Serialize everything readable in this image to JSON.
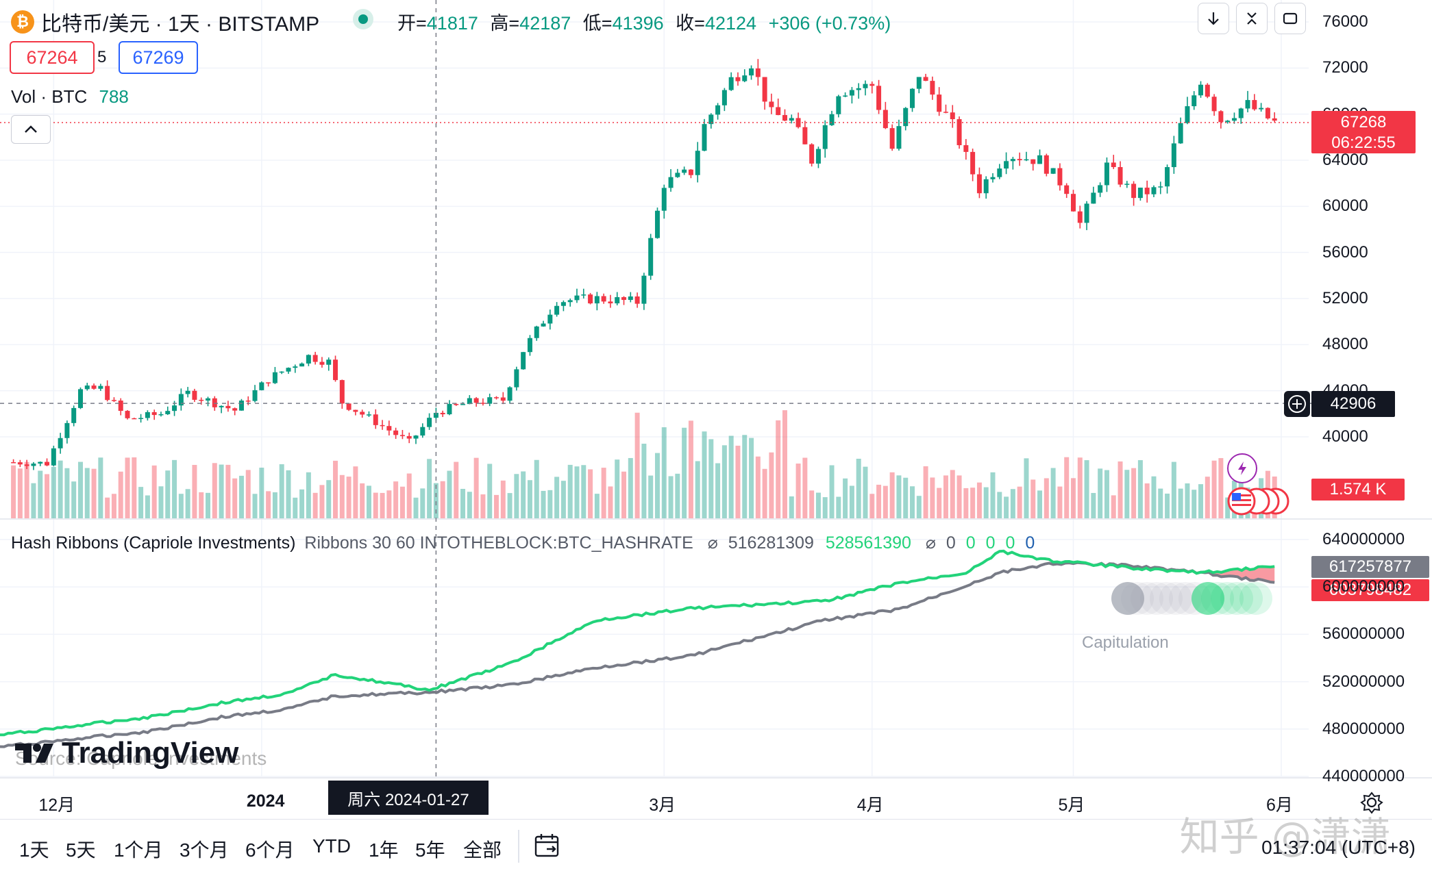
{
  "header": {
    "symbol_title": "比特币/美元 · 1天 · BITSTAMP",
    "btc_badge": "₿",
    "open_label": "开=",
    "open": "41817",
    "high_label": "高=",
    "high": "42187",
    "low_label": "低=",
    "low": "41396",
    "close_label": "收=",
    "close": "42124",
    "change": "+306 (+0.73%)"
  },
  "trade": {
    "sell": "67264",
    "spread": "5",
    "buy": "67269"
  },
  "volume_legend": {
    "label": "Vol · BTC",
    "value": "788"
  },
  "toolbar": {
    "collapse_icon": "chevron-up-icon",
    "down_icon": "arrow-down-icon",
    "close_icon": "close-icon",
    "fullscreen_icon": "fullscreen-icon"
  },
  "price_axis": {
    "ticks": [
      "76000",
      "72000",
      "68000",
      "64000",
      "60000",
      "56000",
      "52000",
      "48000",
      "44000",
      "40000"
    ]
  },
  "tags": {
    "last_price": "67268",
    "countdown": "06:22:55",
    "crosshair_price": "42906",
    "volume": "1.574 K",
    "hash_fast": "617257877",
    "hash_slow": "603798482"
  },
  "indicator": {
    "name": "Hash Ribbons (Capriole Investments)",
    "params": "Ribbons 30 60 INTOTHEBLOCK:BTC_HASHRATE",
    "symbol": "⌀",
    "v1": "516281309",
    "v2": "528561390",
    "symbol2": "⌀",
    "z1": "0",
    "z2": "0",
    "z3": "0",
    "z4": "0",
    "z5": "0",
    "capitulation_label": "Capitulation",
    "source_label": "Source: Capriole Investments",
    "axis_ticks": [
      "640000000",
      "600000000",
      "560000000",
      "520000000",
      "480000000",
      "440000000"
    ]
  },
  "time_axis": {
    "labels": [
      "12月",
      "2024",
      "3月",
      "4月",
      "5月",
      "6月"
    ],
    "crosshair_date": "周六 2024-01-27"
  },
  "range_buttons": [
    "1天",
    "5天",
    "1个月",
    "3个月",
    "6个月",
    "YTD",
    "1年",
    "5年",
    "全部"
  ],
  "bottom": {
    "clock": "01:37:04 (UTC+8)",
    "watermark": "知乎 @潇潇",
    "tv_logo": "TradingView"
  },
  "colors": {
    "up": "#089981",
    "down": "#f23645",
    "ribbon_fast": "#22d37a",
    "ribbon_slow": "#787b86"
  },
  "chart_data": [
    {
      "type": "candlestick",
      "title": "比特币/美元 · 1天 · BITSTAMP",
      "x_range": [
        "2023-11-23",
        "2024-06-01"
      ],
      "ylim": [
        38000,
        76500
      ],
      "last_price": 67268,
      "crosshair": {
        "date": "2024-01-27",
        "price": 42906
      },
      "crosshair_bar": {
        "open": 41817,
        "high": 42187,
        "low": 41396,
        "close": 42124
      },
      "anchors": [
        [
          "2023-11-25",
          37800
        ],
        [
          "2023-11-30",
          37700
        ],
        [
          "2023-12-05",
          44000
        ],
        [
          "2023-12-08",
          44200
        ],
        [
          "2023-12-12",
          41500
        ],
        [
          "2023-12-17",
          42000
        ],
        [
          "2023-12-21",
          43800
        ],
        [
          "2023-12-28",
          42300
        ],
        [
          "2024-01-02",
          45000
        ],
        [
          "2024-01-08",
          47000
        ],
        [
          "2024-01-11",
          46500
        ],
        [
          "2024-01-13",
          43000
        ],
        [
          "2024-01-18",
          41300
        ],
        [
          "2024-01-23",
          39500
        ],
        [
          "2024-01-27",
          42124
        ],
        [
          "2024-02-01",
          43000
        ],
        [
          "2024-02-06",
          43200
        ],
        [
          "2024-02-09",
          47500
        ],
        [
          "2024-02-14",
          51800
        ],
        [
          "2024-02-20",
          52000
        ],
        [
          "2024-02-26",
          51700
        ],
        [
          "2024-02-28",
          57000
        ],
        [
          "2024-03-01",
          62000
        ],
        [
          "2024-03-05",
          63000
        ],
        [
          "2024-03-07",
          67000
        ],
        [
          "2024-03-11",
          71000
        ],
        [
          "2024-03-14",
          72500
        ],
        [
          "2024-03-17",
          68000
        ],
        [
          "2024-03-20",
          67500
        ],
        [
          "2024-03-23",
          64000
        ],
        [
          "2024-03-27",
          70000
        ],
        [
          "2024-04-01",
          70500
        ],
        [
          "2024-04-04",
          65000
        ],
        [
          "2024-04-08",
          71500
        ],
        [
          "2024-04-13",
          67000
        ],
        [
          "2024-04-17",
          61500
        ],
        [
          "2024-04-21",
          64500
        ],
        [
          "2024-04-26",
          64000
        ],
        [
          "2024-04-30",
          61500
        ],
        [
          "2024-05-02",
          58500
        ],
        [
          "2024-05-06",
          63500
        ],
        [
          "2024-05-10",
          61000
        ],
        [
          "2024-05-14",
          61500
        ],
        [
          "2024-05-17",
          67000
        ],
        [
          "2024-05-20",
          71000
        ],
        [
          "2024-05-23",
          67500
        ],
        [
          "2024-05-27",
          68800
        ],
        [
          "2024-05-31",
          67268
        ]
      ]
    },
    {
      "type": "bar",
      "title": "Vol · BTC",
      "current_value": 788,
      "last_value": 1574,
      "note": "daily volume bars colored by candle direction"
    },
    {
      "type": "line",
      "title": "Hash Ribbons (Capriole Investments)",
      "x_range": [
        "2023-11-23",
        "2024-06-01"
      ],
      "ylim": [
        440000000,
        640000000
      ],
      "series": [
        {
          "name": "30",
          "color": "#22d37a",
          "points": [
            [
              "2023-11-23",
              475000000
            ],
            [
              "2023-12-15",
              490000000
            ],
            [
              "2023-12-26",
              502000000
            ],
            [
              "2024-01-05",
              510000000
            ],
            [
              "2024-01-12",
              526000000
            ],
            [
              "2024-01-26",
              513000000
            ],
            [
              "2024-02-07",
              535000000
            ],
            [
              "2024-02-20",
              572000000
            ],
            [
              "2024-03-05",
              582000000
            ],
            [
              "2024-03-25",
              588000000
            ],
            [
              "2024-04-05",
              603000000
            ],
            [
              "2024-04-15",
              612000000
            ],
            [
              "2024-04-20",
              630000000
            ],
            [
              "2024-04-28",
              622000000
            ],
            [
              "2024-05-10",
              616000000
            ],
            [
              "2024-05-20",
              612000000
            ],
            [
              "2024-05-31",
              617257877
            ]
          ]
        },
        {
          "name": "60",
          "color": "#787b86",
          "points": [
            [
              "2023-11-23",
              465000000
            ],
            [
              "2023-12-15",
              478000000
            ],
            [
              "2023-12-26",
              490000000
            ],
            [
              "2024-01-05",
              497000000
            ],
            [
              "2024-01-12",
              508000000
            ],
            [
              "2024-01-26",
              511000000
            ],
            [
              "2024-02-07",
              517000000
            ],
            [
              "2024-02-20",
              532000000
            ],
            [
              "2024-03-05",
              542000000
            ],
            [
              "2024-03-25",
              572000000
            ],
            [
              "2024-04-05",
              581000000
            ],
            [
              "2024-04-15",
              601000000
            ],
            [
              "2024-04-20",
              612000000
            ],
            [
              "2024-04-28",
              620000000
            ],
            [
              "2024-05-10",
              618000000
            ],
            [
              "2024-05-20",
              612000000
            ],
            [
              "2024-05-31",
              603798482
            ]
          ]
        }
      ],
      "annotations": [
        "Capitulation"
      ]
    }
  ]
}
